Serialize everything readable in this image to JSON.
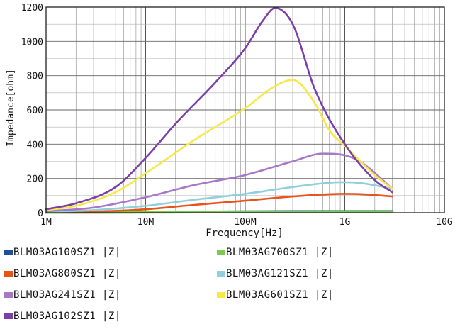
{
  "chart_data": {
    "type": "line",
    "title": "",
    "xlabel": "Frequency[Hz]",
    "ylabel": "Impedance[ohm]",
    "xscale": "log",
    "xlim": [
      1000000,
      10000000000
    ],
    "ylim": [
      0,
      1200
    ],
    "x_ticks": [
      {
        "value": 1000000,
        "label": "1M"
      },
      {
        "value": 10000000,
        "label": "10M"
      },
      {
        "value": 100000000,
        "label": "100M"
      },
      {
        "value": 1000000000,
        "label": "1G"
      },
      {
        "value": 10000000000,
        "label": "10G"
      }
    ],
    "y_ticks": [
      {
        "value": 0,
        "label": "0"
      },
      {
        "value": 200,
        "label": "200"
      },
      {
        "value": 400,
        "label": "400"
      },
      {
        "value": 600,
        "label": "600"
      },
      {
        "value": 800,
        "label": "800"
      },
      {
        "value": 1000,
        "label": "1000"
      },
      {
        "value": 1200,
        "label": "1200"
      }
    ],
    "grid": true,
    "legend_position": "bottom",
    "series": [
      {
        "name": "BLM03AG100SZ1 |Z|",
        "color": "#1f4e9c",
        "x": [
          1000000,
          10000000,
          100000000,
          1000000000,
          3000000000
        ],
        "y": [
          1,
          3,
          6,
          8,
          8
        ]
      },
      {
        "name": "BLM03AG700SZ1 |Z|",
        "color": "#7cc94e",
        "x": [
          1000000,
          10000000,
          100000000,
          1000000000,
          3000000000
        ],
        "y": [
          1,
          2,
          4,
          6,
          6
        ]
      },
      {
        "name": "BLM03AG800SZ1 |Z|",
        "color": "#e8531c",
        "x": [
          1000000,
          3000000,
          10000000,
          30000000,
          100000000,
          300000000,
          700000000,
          1000000000,
          1500000000,
          3000000000
        ],
        "y": [
          2,
          6,
          20,
          45,
          70,
          95,
          108,
          110,
          108,
          95
        ]
      },
      {
        "name": "BLM03AG121SZ1 |Z|",
        "color": "#8fd0dc",
        "x": [
          1000000,
          3000000,
          10000000,
          30000000,
          100000000,
          300000000,
          700000000,
          1000000000,
          1500000000,
          3000000000
        ],
        "y": [
          4,
          15,
          40,
          75,
          110,
          150,
          175,
          178,
          172,
          140
        ]
      },
      {
        "name": "BLM03AG241SZ1 |Z|",
        "color": "#a878c8",
        "x": [
          1000000,
          3000000,
          10000000,
          30000000,
          100000000,
          300000000,
          600000000,
          1000000000,
          1500000000,
          3000000000
        ],
        "y": [
          8,
          30,
          90,
          160,
          220,
          300,
          345,
          335,
          290,
          140
        ]
      },
      {
        "name": "BLM03AG601SZ1 |Z|",
        "color": "#f7e84a",
        "x": [
          1000000,
          2000000,
          5000000,
          10000000,
          30000000,
          100000000,
          200000000,
          300000000,
          500000000,
          700000000,
          1000000000,
          2000000000,
          3000000000
        ],
        "y": [
          15,
          40,
          120,
          230,
          420,
          610,
          740,
          775,
          640,
          480,
          390,
          220,
          140
        ]
      },
      {
        "name": "BLM03AG102SZ1 |Z|",
        "color": "#7c3fa8",
        "x": [
          1000000,
          2000000,
          5000000,
          10000000,
          20000000,
          50000000,
          100000000,
          150000000,
          200000000,
          300000000,
          500000000,
          1000000000,
          2000000000,
          3000000000
        ],
        "y": [
          20,
          55,
          150,
          320,
          520,
          760,
          960,
          1120,
          1195,
          1100,
          720,
          400,
          190,
          120
        ]
      }
    ]
  }
}
